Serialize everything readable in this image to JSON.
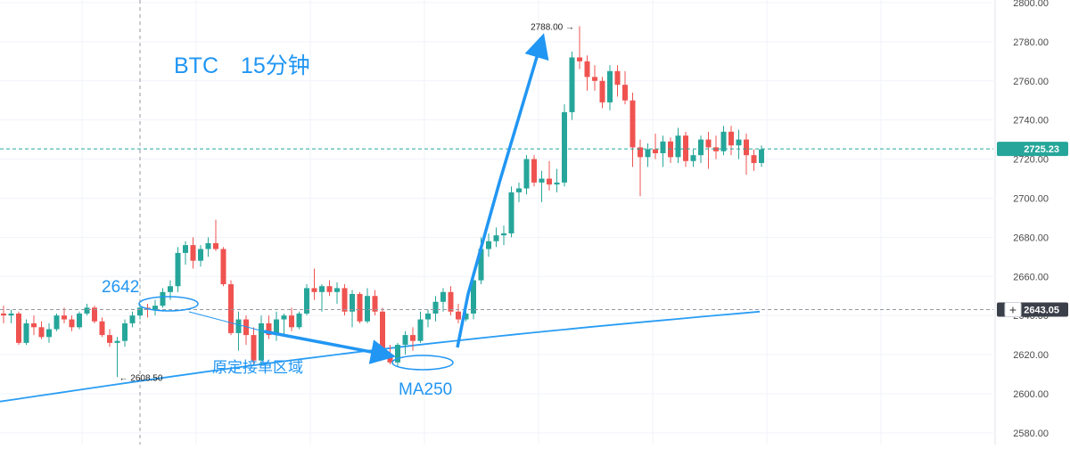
{
  "chart_data": {
    "type": "candlestick",
    "title": "BTC　15分钟",
    "y_axis": {
      "ticks": [
        "2580.00",
        "2600.00",
        "2620.00",
        "2640.00",
        "2660.00",
        "2680.00",
        "2700.00",
        "2720.00",
        "2740.00",
        "2760.00",
        "2780.00",
        "2800.00"
      ],
      "range": [
        2574,
        2800
      ]
    },
    "candles": [
      [
        2641,
        2645,
        2636,
        2640
      ],
      [
        2640,
        2643,
        2636,
        2641
      ],
      [
        2641,
        2642,
        2625,
        2626
      ],
      [
        2626,
        2638,
        2625,
        2636
      ],
      [
        2636,
        2640,
        2630,
        2634
      ],
      [
        2634,
        2637,
        2628,
        2629
      ],
      [
        2629,
        2636,
        2626,
        2633
      ],
      [
        2633,
        2641,
        2632,
        2640
      ],
      [
        2640,
        2644,
        2636,
        2638
      ],
      [
        2638,
        2640,
        2632,
        2634
      ],
      [
        2634,
        2642,
        2633,
        2641
      ],
      [
        2641,
        2646,
        2640,
        2644
      ],
      [
        2644,
        2645,
        2636,
        2637
      ],
      [
        2637,
        2639,
        2629,
        2630
      ],
      [
        2630,
        2633,
        2624,
        2626
      ],
      [
        2626,
        2629,
        2608.5,
        2627
      ],
      [
        2627,
        2638,
        2624,
        2636
      ],
      [
        2636,
        2642,
        2634,
        2640
      ],
      [
        2640,
        2646,
        2638,
        2644
      ],
      [
        2644,
        2646,
        2639,
        2643
      ],
      [
        2643,
        2648,
        2640,
        2645
      ],
      [
        2645,
        2654,
        2644,
        2652
      ],
      [
        2652,
        2658,
        2648,
        2655
      ],
      [
        2655,
        2675,
        2652,
        2672
      ],
      [
        2672,
        2678,
        2666,
        2676
      ],
      [
        2676,
        2680,
        2664,
        2668
      ],
      [
        2668,
        2676,
        2665,
        2674
      ],
      [
        2674,
        2680,
        2670,
        2677
      ],
      [
        2677,
        2689,
        2673,
        2674
      ],
      [
        2674,
        2675,
        2655,
        2656
      ],
      [
        2656,
        2658,
        2630,
        2631
      ],
      [
        2631,
        2642,
        2622,
        2638
      ],
      [
        2638,
        2640,
        2625,
        2630
      ],
      [
        2630,
        2634,
        2615,
        2617
      ],
      [
        2617,
        2640,
        2615,
        2636
      ],
      [
        2636,
        2640,
        2628,
        2630
      ],
      [
        2630,
        2642,
        2627,
        2638
      ],
      [
        2638,
        2641,
        2630,
        2640
      ],
      [
        2640,
        2644,
        2632,
        2634
      ],
      [
        2634,
        2642,
        2633,
        2641
      ],
      [
        2641,
        2656,
        2640,
        2654
      ],
      [
        2654,
        2664,
        2648,
        2652
      ],
      [
        2652,
        2656,
        2642,
        2655
      ],
      [
        2655,
        2658,
        2650,
        2652
      ],
      [
        2652,
        2657,
        2646,
        2654
      ],
      [
        2654,
        2656,
        2640,
        2642
      ],
      [
        2642,
        2653,
        2634,
        2651
      ],
      [
        2651,
        2652,
        2636,
        2637
      ],
      [
        2637,
        2654,
        2636,
        2650
      ],
      [
        2650,
        2653,
        2640,
        2642
      ],
      [
        2642,
        2644,
        2618,
        2620
      ],
      [
        2620,
        2625,
        2615,
        2616
      ],
      [
        2616,
        2626,
        2614,
        2625
      ],
      [
        2625,
        2632,
        2620,
        2630
      ],
      [
        2630,
        2634,
        2622,
        2627
      ],
      [
        2627,
        2642,
        2626,
        2638
      ],
      [
        2638,
        2643,
        2634,
        2641
      ],
      [
        2641,
        2650,
        2637,
        2647
      ],
      [
        2647,
        2654,
        2642,
        2652
      ],
      [
        2652,
        2655,
        2640,
        2642
      ],
      [
        2642,
        2646,
        2636,
        2638
      ],
      [
        2638,
        2642,
        2637,
        2641
      ],
      [
        2641,
        2661,
        2638,
        2658
      ],
      [
        2658,
        2680,
        2656,
        2674
      ],
      [
        2674,
        2682,
        2670,
        2678
      ],
      [
        2678,
        2685,
        2675,
        2681
      ],
      [
        2681,
        2686,
        2676,
        2682
      ],
      [
        2682,
        2706,
        2680,
        2703
      ],
      [
        2703,
        2708,
        2698,
        2705
      ],
      [
        2705,
        2722,
        2702,
        2720
      ],
      [
        2720,
        2722,
        2706,
        2708
      ],
      [
        2708,
        2714,
        2698,
        2710
      ],
      [
        2710,
        2719,
        2704,
        2707
      ],
      [
        2707,
        2715,
        2703,
        2708
      ],
      [
        2708,
        2748,
        2706,
        2744
      ],
      [
        2744,
        2775,
        2740,
        2772
      ],
      [
        2772,
        2788,
        2766,
        2770
      ],
      [
        2770,
        2773,
        2755,
        2762
      ],
      [
        2762,
        2768,
        2755,
        2760
      ],
      [
        2760,
        2762,
        2746,
        2749
      ],
      [
        2749,
        2768,
        2745,
        2765
      ],
      [
        2765,
        2768,
        2752,
        2758
      ],
      [
        2758,
        2765,
        2748,
        2750
      ],
      [
        2750,
        2754,
        2716,
        2726
      ],
      [
        2726,
        2730,
        2701,
        2721
      ],
      [
        2721,
        2728,
        2716,
        2725
      ],
      [
        2725,
        2733,
        2720,
        2723
      ],
      [
        2723,
        2732,
        2716,
        2729
      ],
      [
        2729,
        2731,
        2718,
        2721
      ],
      [
        2721,
        2736,
        2718,
        2732
      ],
      [
        2732,
        2734,
        2716,
        2719
      ],
      [
        2719,
        2725,
        2716,
        2722
      ],
      [
        2722,
        2732,
        2718,
        2730
      ],
      [
        2730,
        2734,
        2715,
        2726
      ],
      [
        2726,
        2732,
        2720,
        2724
      ],
      [
        2724,
        2737,
        2722,
        2734
      ],
      [
        2734,
        2737,
        2722,
        2727
      ],
      [
        2727,
        2735,
        2720,
        2730
      ],
      [
        2730,
        2733,
        2712,
        2722
      ],
      [
        2722,
        2725,
        2714,
        2718
      ],
      [
        2718,
        2727,
        2716,
        2725
      ]
    ],
    "ma250": {
      "name": "MA250",
      "start": 2596,
      "end": 2642
    },
    "price_lines": [
      {
        "value": 2725.23,
        "label": "2725.23",
        "badge_color": "#26a69a"
      },
      {
        "value": 2643.05,
        "label": "2643.05",
        "badge_color": "#3b3f4a"
      }
    ],
    "high_marker": {
      "value": 2788.0,
      "label": "2788.00",
      "candle_index": 76,
      "arrow": "→"
    },
    "low_marker": {
      "value": 2608.5,
      "label": "2608.50",
      "candle_index": 15,
      "arrow": "←"
    },
    "crosshair_candle_index": 18,
    "annotations": {
      "title": "BTC　15分钟",
      "level_label": "2642",
      "zone_label": "原定接单区域",
      "ma_label": "MA250"
    },
    "colors": {
      "up": "#26a69a",
      "down": "#ef5350",
      "ma": "#2a9df4",
      "annotation": "#2196f3",
      "grid": "#f0f3fa",
      "crosshair": "#9598a1"
    }
  }
}
